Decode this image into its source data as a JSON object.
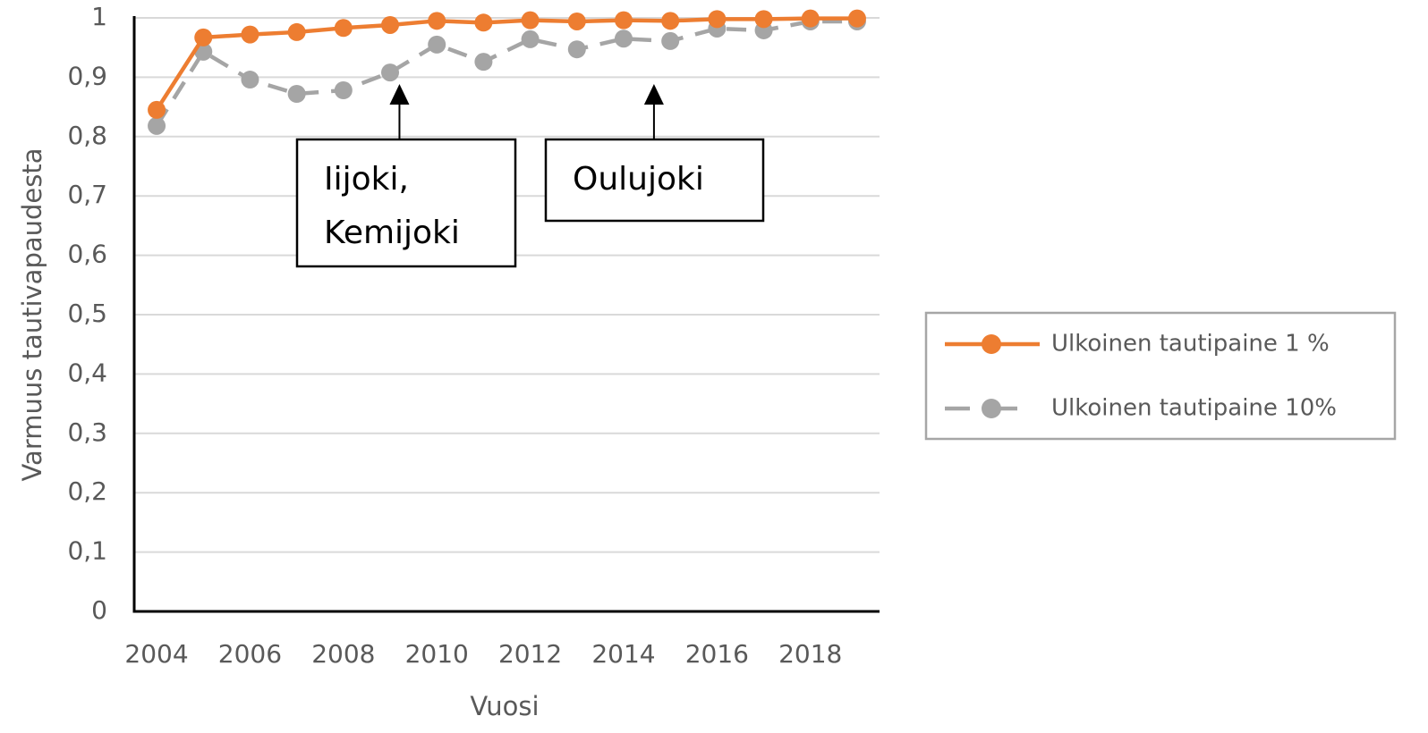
{
  "chart_data": {
    "type": "line",
    "x_label": "Vuosi",
    "y_label": "Varmuus tautivapaudesta",
    "x": [
      2004,
      2005,
      2006,
      2007,
      2008,
      2009,
      2010,
      2011,
      2012,
      2013,
      2014,
      2015,
      2016,
      2017,
      2018,
      2019
    ],
    "series": [
      {
        "name": "Ulkoinen tautipaine 1 %",
        "color": "#ed7d31",
        "line_style": "solid",
        "values": [
          0.845,
          0.967,
          0.972,
          0.976,
          0.983,
          0.988,
          0.995,
          0.992,
          0.996,
          0.994,
          0.996,
          0.995,
          0.998,
          0.998,
          0.999,
          0.999
        ]
      },
      {
        "name": "Ulkoinen tautipaine 10%",
        "color": "#a5a5a5",
        "line_style": "dashed",
        "values": [
          0.818,
          0.943,
          0.896,
          0.872,
          0.878,
          0.908,
          0.955,
          0.926,
          0.964,
          0.947,
          0.965,
          0.961,
          0.982,
          0.979,
          0.994,
          0.994
        ]
      }
    ],
    "xlim": [
      2003.52,
      2019.48
    ],
    "xticks": [
      2004,
      2006,
      2008,
      2010,
      2012,
      2014,
      2016,
      2018
    ],
    "ylim": [
      0,
      1
    ],
    "yticks": [
      0,
      {
        "value": 0.1,
        "label": "0,1"
      },
      {
        "value": 0.2,
        "label": "0,2"
      },
      {
        "value": 0.3,
        "label": "0,3"
      },
      {
        "value": 0.4,
        "label": "0,4"
      },
      {
        "value": 0.5,
        "label": "0,5"
      },
      {
        "value": 0.6,
        "label": "0,6"
      },
      {
        "value": 0.7,
        "label": "0,7"
      },
      {
        "value": 0.8,
        "label": "0,8"
      },
      {
        "value": 0.9,
        "label": "0,9"
      },
      1
    ],
    "grid": true,
    "legend_position": "right",
    "annotations": [
      {
        "lines": [
          "Iijoki,",
          "Kemijoki"
        ],
        "x": 2009.2
      },
      {
        "lines": [
          "Oulujoki"
        ],
        "x": 2014.65
      }
    ]
  }
}
